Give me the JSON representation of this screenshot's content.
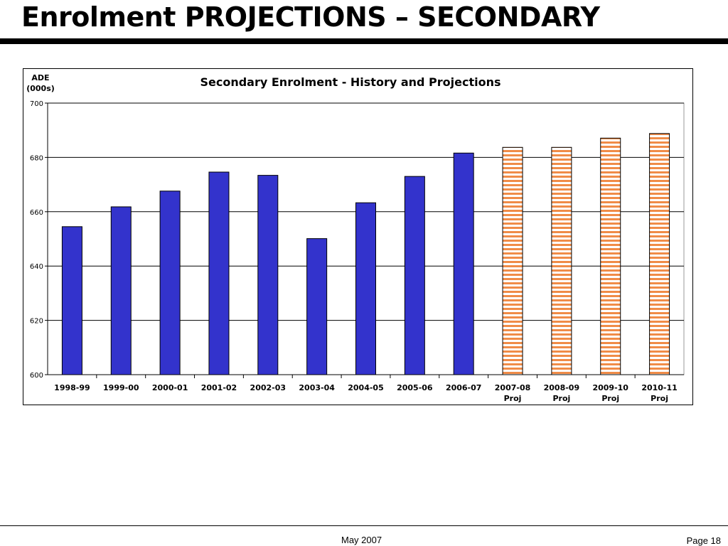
{
  "slide": {
    "title": "Enrolment PROJECTIONS – SECONDARY",
    "footer_date": "May 2007",
    "footer_page": "Page 18"
  },
  "chart_data": {
    "type": "bar",
    "title": "Secondary Enrolment - History and Projections",
    "ylabel_lines": [
      "ADE",
      "(000s)"
    ],
    "ylim": [
      600,
      700
    ],
    "yticks": [
      600,
      620,
      640,
      660,
      680,
      700
    ],
    "grid": true,
    "categories": [
      [
        "1998-99"
      ],
      [
        "1999-00"
      ],
      [
        "2000-01"
      ],
      [
        "2001-02"
      ],
      [
        "2002-03"
      ],
      [
        "2003-04"
      ],
      [
        "2004-05"
      ],
      [
        "2005-06"
      ],
      [
        "2006-07"
      ],
      [
        "2007-08",
        "Proj"
      ],
      [
        "2008-09",
        "Proj"
      ],
      [
        "2009-10",
        "Proj"
      ],
      [
        "2010-11",
        "Proj"
      ]
    ],
    "series": [
      {
        "values": [
          654.5,
          661.8,
          667.6,
          674.6,
          673.4,
          650.1,
          663.3,
          673.0,
          681.6,
          683.7,
          683.7,
          687.1,
          688.8
        ]
      }
    ],
    "bar_types": [
      "actual",
      "actual",
      "actual",
      "actual",
      "actual",
      "actual",
      "actual",
      "actual",
      "actual",
      "projection",
      "projection",
      "projection",
      "projection"
    ],
    "colors": {
      "actual": "#3333cc",
      "projection_stripe": "#f08c48",
      "projection_gap": "#ffffff",
      "border": "#000000",
      "grid": "#000000"
    }
  }
}
